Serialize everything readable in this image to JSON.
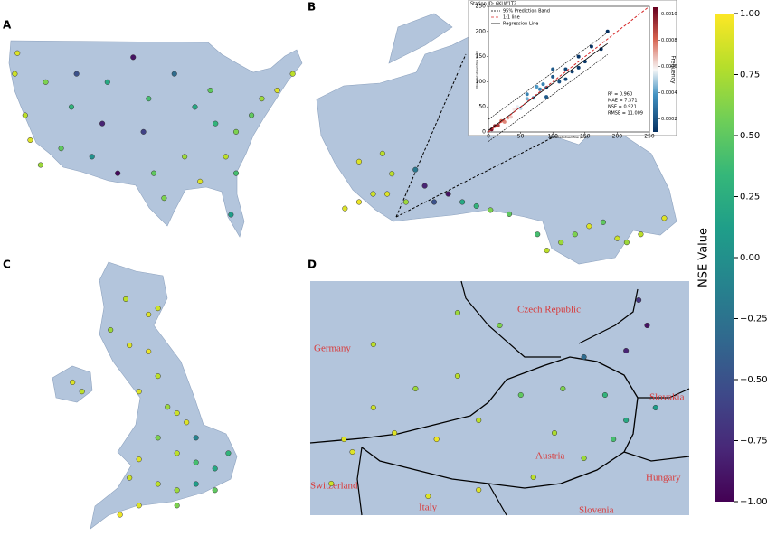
{
  "panels": [
    {
      "label": "A",
      "stations": {
        "lon": [
          -122.5,
          -123,
          -121,
          -120,
          -118,
          -117,
          -112,
          -111,
          -106,
          -105,
          -100,
          -97,
          -98,
          -96,
          -94,
          -90,
          -88,
          -85,
          -84,
          -82,
          -81,
          -80,
          -77,
          -75,
          -72,
          -69,
          -80,
          -87,
          -92,
          -103,
          -108,
          -114
        ],
        "lat": [
          47.5,
          45,
          40,
          37,
          34,
          44,
          41,
          45,
          39,
          44,
          47,
          42,
          38,
          33,
          30,
          35,
          41,
          43,
          39,
          35,
          28,
          38,
          40,
          42,
          43,
          45,
          33,
          32,
          45,
          33,
          35,
          36
        ],
        "nse": [
          0.9,
          0.85,
          0.8,
          0.9,
          0.7,
          0.6,
          0.3,
          -0.5,
          -0.8,
          0.2,
          -0.9,
          0.4,
          -0.6,
          0.5,
          0.6,
          0.7,
          0.2,
          0.5,
          0.3,
          0.8,
          0.1,
          0.6,
          0.5,
          0.7,
          0.9,
          0.8,
          0.4,
          0.9,
          -0.3,
          -0.95,
          0.0,
          0.5
        ]
      }
    },
    {
      "label": "B",
      "stations": {
        "lon": [
          -123,
          -120,
          -117,
          -114,
          -113,
          -110,
          -106,
          -104,
          -101,
          -98,
          -95,
          -92,
          -88,
          -82,
          -80,
          -77,
          -74,
          -71,
          -68,
          -65,
          -63,
          -60,
          -55,
          -120,
          -115,
          -108
        ],
        "lat": [
          49.2,
          50,
          51,
          51,
          53.5,
          50,
          52,
          50,
          51,
          50,
          49.5,
          49,
          48.5,
          46,
          44,
          45,
          46,
          47,
          47.5,
          45.5,
          45,
          46,
          48,
          55,
          56,
          54
        ],
        "nse": [
          0.9,
          0.95,
          0.85,
          0.9,
          0.8,
          0.7,
          -0.8,
          -0.5,
          -0.9,
          0.2,
          0.3,
          0.6,
          0.5,
          0.4,
          0.8,
          0.7,
          0.6,
          0.9,
          0.5,
          0.85,
          0.7,
          0.8,
          0.9,
          0.9,
          0.8,
          -0.2
        ]
      }
    },
    {
      "label": "C",
      "stations": {
        "lon": [
          -4.2,
          -3,
          -2.5,
          -5,
          -4,
          -3,
          -2.5,
          -3.5,
          -2,
          -1.5,
          -1,
          -2.5,
          -1.5,
          -0.5,
          0.5,
          1.2,
          -3.5,
          -4,
          -2.5,
          -1.5,
          -0.5,
          0.5,
          -3.5,
          -4.5,
          -1.5,
          -6.5,
          -7,
          -0.5
        ],
        "lat": [
          57.5,
          57,
          57.2,
          56.5,
          56,
          55.8,
          55,
          54.5,
          54,
          53.8,
          53.5,
          53,
          52.5,
          52.2,
          52,
          52.5,
          52.3,
          51.7,
          51.5,
          51.3,
          51.5,
          51.3,
          50.8,
          50.5,
          50.8,
          54.5,
          54.8,
          53
        ],
        "nse": [
          0.8,
          0.9,
          0.85,
          0.7,
          0.9,
          0.95,
          0.8,
          0.9,
          0.7,
          0.85,
          0.9,
          0.6,
          0.8,
          0.4,
          0.2,
          0.3,
          0.9,
          0.85,
          0.8,
          0.7,
          0.1,
          0.5,
          0.9,
          0.95,
          0.6,
          0.8,
          0.9,
          -0.1
        ]
      }
    },
    {
      "label": "D",
      "stations": {
        "lon": [
          9.8,
          10.5,
          11.5,
          12.5,
          11,
          12,
          13,
          14,
          15,
          16,
          16.5,
          15.5,
          14.3,
          13,
          10,
          15.5,
          16.5,
          17,
          16.8,
          13.5,
          12.5,
          10.5,
          16.2,
          17.2,
          14.8,
          11.8,
          9.5
        ],
        "lat": [
          47.5,
          48,
          48.3,
          48.5,
          47.6,
          47.5,
          47.8,
          48.2,
          48.3,
          48.2,
          47.8,
          47.2,
          46.9,
          46.7,
          47.3,
          48.8,
          48.9,
          49.3,
          49.7,
          49.3,
          49.5,
          49,
          47.5,
          48,
          47.6,
          46.6,
          46.8
        ],
        "nse": [
          0.9,
          0.85,
          0.7,
          0.8,
          0.9,
          0.95,
          0.8,
          0.5,
          0.6,
          0.3,
          0.2,
          0.7,
          0.8,
          0.9,
          0.9,
          -0.3,
          -0.8,
          -0.9,
          -0.7,
          0.6,
          0.7,
          0.8,
          0.4,
          0.1,
          0.75,
          0.9,
          0.85
        ]
      },
      "countries": [
        "Czech Republic",
        "Germany",
        "Slovakia",
        "Austria",
        "Hungary",
        "Switzerland",
        "Italy",
        "Slovenia"
      ]
    }
  ],
  "inset": {
    "title": "Station ID: 6KLW1T2",
    "xlabel": "Predicted streamflow (m³/s)",
    "ylabel": "Observed streamflow (m³/s)",
    "xlim": [
      0,
      250
    ],
    "ylim": [
      0,
      250
    ],
    "xticks": [
      0,
      50,
      100,
      150,
      200,
      250
    ],
    "yticks": [
      0,
      50,
      100,
      150,
      200,
      250
    ],
    "legend": [
      "95% Prediction Band",
      "1:1 line",
      "Regression Line"
    ],
    "stats": [
      "R² = 0.960",
      "MAE = 7.371",
      "NSE = 0.921",
      "RMSE = 11.009"
    ],
    "x": [
      5,
      10,
      15,
      20,
      30,
      40,
      50,
      60,
      70,
      80,
      90,
      100,
      110,
      120,
      130,
      140,
      150,
      160,
      175,
      185,
      60,
      90,
      100,
      35,
      25,
      45,
      75,
      85,
      120,
      140
    ],
    "y": [
      5,
      12,
      13,
      22,
      28,
      45,
      47,
      66,
      68,
      85,
      88,
      110,
      100,
      125,
      120,
      150,
      140,
      170,
      165,
      200,
      75,
      70,
      125,
      30,
      20,
      50,
      90,
      95,
      105,
      128
    ],
    "frequency": [
      0.001,
      0.00095,
      0.0009,
      0.0008,
      0.0007,
      0.0006,
      0.0005,
      0.0004,
      0.00035,
      0.0003,
      0.00025,
      0.0002,
      0.00018,
      0.00015,
      0.00013,
      0.00012,
      0.00012,
      0.00011,
      0.0001,
      0.0001,
      0.0003,
      0.0002,
      0.0002,
      0.00065,
      0.00075,
      0.00055,
      0.00035,
      0.0003,
      0.00015,
      0.00012
    ],
    "regression": {
      "x": [
        0,
        185
      ],
      "y": [
        3,
        176
      ]
    },
    "band_upper": {
      "x": [
        0,
        185
      ],
      "y": [
        25,
        198
      ]
    },
    "band_lower": {
      "x": [
        0,
        185
      ],
      "y": [
        -19,
        154
      ]
    },
    "colorbar_label": "Frequency",
    "clim": [
      0.0001,
      0.00105
    ],
    "cticks": [
      0.0002,
      0.0004,
      0.0006,
      0.0008,
      {
        "value": 0.001,
        "label": "0.0010"
      }
    ]
  },
  "colorbar": {
    "label": "NSE Value",
    "clim": [
      -1,
      1
    ],
    "ticks": [
      {
        "value": 1,
        "label": "1.00"
      },
      {
        "value": 0.75,
        "label": "0.75"
      },
      {
        "value": 0.5,
        "label": "0.50"
      },
      {
        "value": 0.25,
        "label": "0.25"
      },
      {
        "value": 0,
        "label": "0.00"
      },
      {
        "value": -0.25,
        "label": "−0.25"
      },
      {
        "value": -0.5,
        "label": "−0.50"
      },
      {
        "value": -0.75,
        "label": "−0.75"
      },
      {
        "value": -1,
        "label": "−1.00"
      }
    ]
  }
}
